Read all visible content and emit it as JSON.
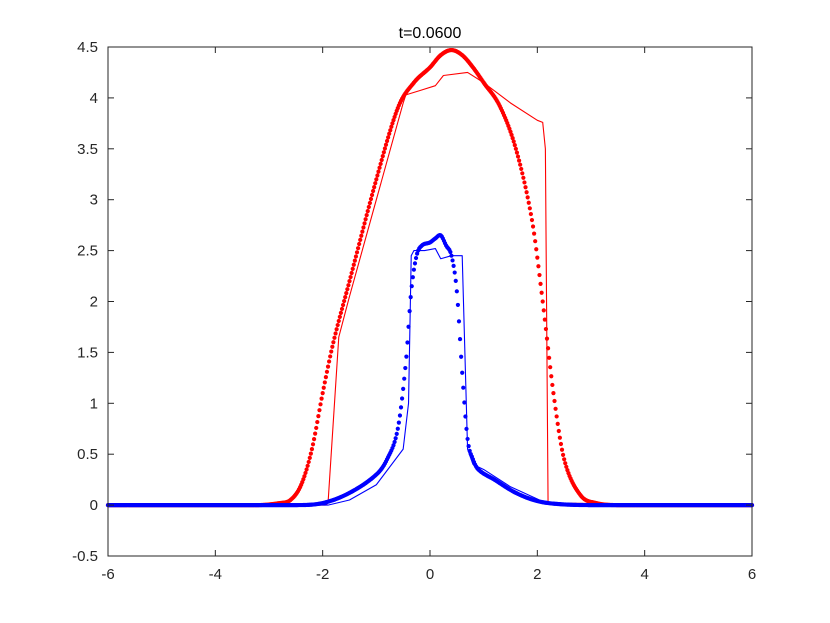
{
  "chart_data": {
    "type": "scatter",
    "title": "t=0.0600",
    "xlabel": "",
    "ylabel": "",
    "xlim": [
      -6,
      6
    ],
    "ylim": [
      -0.5,
      4.5
    ],
    "xticks": [
      "-6",
      "-4",
      "-2",
      "0",
      "2",
      "4",
      "6"
    ],
    "yticks": [
      "-0.5",
      "0",
      "0.5",
      "1",
      "1.5",
      "2",
      "2.5",
      "3",
      "3.5",
      "4",
      "4.5"
    ],
    "grid": false,
    "legend": "none",
    "colors": {
      "red": "#ff0000",
      "blue": "#0000ff",
      "axis": "#262626"
    },
    "series": [
      {
        "color": "#ff0000",
        "style": "line",
        "x": [
          -6,
          -2.15,
          -1.95,
          -1.9,
          -1.7,
          -1.5,
          -1.0,
          -0.5,
          -0.45,
          -0.2,
          0.1,
          0.25,
          0.7,
          1.0,
          1.5,
          2.0,
          2.1,
          2.15,
          2.2,
          6
        ],
        "y": [
          0,
          0,
          0,
          0.02,
          1.65,
          2.05,
          3.0,
          3.95,
          4.03,
          4.07,
          4.12,
          4.22,
          4.25,
          4.15,
          3.95,
          3.78,
          3.76,
          3.5,
          0.02,
          0
        ]
      },
      {
        "color": "#ff0000",
        "style": "dots",
        "x": [
          -6,
          -3.2,
          -2.8,
          -2.6,
          -2.4,
          -2.2,
          -2.0,
          -1.8,
          -1.5,
          -1.0,
          -0.6,
          -0.3,
          0.0,
          0.2,
          0.4,
          0.6,
          0.8,
          1.0,
          1.3,
          1.6,
          1.9,
          2.1,
          2.3,
          2.5,
          2.8,
          3.1,
          3.5,
          6
        ],
        "y": [
          0,
          0.0,
          0.02,
          0.05,
          0.2,
          0.55,
          1.1,
          1.6,
          2.2,
          3.2,
          3.9,
          4.15,
          4.3,
          4.42,
          4.47,
          4.42,
          4.3,
          4.15,
          3.92,
          3.5,
          2.8,
          2.0,
          1.1,
          0.45,
          0.1,
          0.02,
          0.0,
          0
        ]
      },
      {
        "color": "#0000ff",
        "style": "line",
        "x": [
          -6,
          -1.9,
          -1.5,
          -1.0,
          -0.5,
          -0.4,
          -0.35,
          -0.3,
          -0.1,
          0.1,
          0.2,
          0.4,
          0.6,
          0.65,
          0.7,
          0.8,
          1.0,
          1.5,
          2.0,
          2.2,
          6
        ],
        "y": [
          0,
          0,
          0.05,
          0.2,
          0.55,
          1.0,
          2.45,
          2.5,
          2.5,
          2.52,
          2.42,
          2.45,
          2.45,
          1.5,
          0.55,
          0.4,
          0.35,
          0.18,
          0.06,
          0.01,
          0
        ]
      },
      {
        "color": "#0000ff",
        "style": "dots",
        "x": [
          -6,
          -2.5,
          -2.0,
          -1.5,
          -1.0,
          -0.8,
          -0.6,
          -0.45,
          -0.35,
          -0.25,
          -0.15,
          0.0,
          0.1,
          0.2,
          0.3,
          0.4,
          0.5,
          0.6,
          0.7,
          0.8,
          0.9,
          1.2,
          1.6,
          2.0,
          2.4,
          3.0,
          6
        ],
        "y": [
          0,
          0.0,
          0.02,
          0.12,
          0.3,
          0.45,
          0.75,
          1.4,
          2.1,
          2.45,
          2.55,
          2.58,
          2.62,
          2.65,
          2.55,
          2.45,
          2.1,
          1.3,
          0.65,
          0.45,
          0.35,
          0.25,
          0.12,
          0.04,
          0.01,
          0.0,
          0
        ]
      }
    ]
  }
}
